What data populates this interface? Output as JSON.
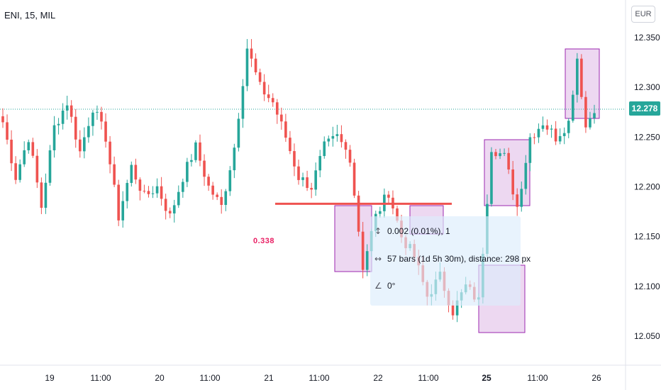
{
  "header": {
    "symbol_title": "ENI, 15, MIL",
    "currency": "EUR"
  },
  "colors": {
    "up": "#26a69a",
    "down": "#ef5350",
    "level_line": "#ef5350",
    "box_fill": "#e1bee7",
    "box_stroke": "#9c27b0",
    "last_price": "#26a69a"
  },
  "chart_data": {
    "type": "candlestick",
    "ylim": [
      12.035,
      12.37
    ],
    "yticks": [
      "12.350",
      "12.300",
      "12.250",
      "12.200",
      "12.150",
      "12.100",
      "12.050"
    ],
    "xticks": [
      {
        "label": "19",
        "bold": false
      },
      {
        "label": "11:00",
        "bold": false
      },
      {
        "label": "20",
        "bold": false
      },
      {
        "label": "11:00",
        "bold": false
      },
      {
        "label": "21",
        "bold": false
      },
      {
        "label": "11:00",
        "bold": false
      },
      {
        "label": "22",
        "bold": false
      },
      {
        "label": "11:00",
        "bold": false
      },
      {
        "label": "25",
        "bold": true
      },
      {
        "label": "11:00",
        "bold": false
      },
      {
        "label": "26",
        "bold": false
      }
    ],
    "last_price": "12.278",
    "horizontal_level": 12.183,
    "annotation_text": "0.338",
    "keypoints": [
      [
        0,
        12.265
      ],
      [
        3,
        12.21
      ],
      [
        6,
        12.25
      ],
      [
        9,
        12.18
      ],
      [
        12,
        12.26
      ],
      [
        15,
        12.285
      ],
      [
        18,
        12.235
      ],
      [
        21,
        12.28
      ],
      [
        24,
        12.25
      ],
      [
        27,
        12.17
      ],
      [
        30,
        12.22
      ],
      [
        33,
        12.19
      ],
      [
        36,
        12.2
      ],
      [
        39,
        12.17
      ],
      [
        42,
        12.21
      ],
      [
        45,
        12.24
      ],
      [
        48,
        12.2
      ],
      [
        51,
        12.18
      ],
      [
        54,
        12.24
      ],
      [
        57,
        12.34
      ],
      [
        60,
        12.3
      ],
      [
        63,
        12.285
      ],
      [
        66,
        12.25
      ],
      [
        69,
        12.21
      ],
      [
        72,
        12.2
      ],
      [
        75,
        12.24
      ],
      [
        78,
        12.25
      ],
      [
        81,
        12.23
      ],
      [
        84,
        12.12
      ],
      [
        87,
        12.17
      ],
      [
        90,
        12.195
      ],
      [
        93,
        12.15
      ],
      [
        96,
        12.13
      ],
      [
        99,
        12.09
      ],
      [
        102,
        12.11
      ],
      [
        105,
        12.075
      ],
      [
        108,
        12.1
      ],
      [
        111,
        12.085
      ],
      [
        114,
        12.24
      ],
      [
        117,
        12.23
      ],
      [
        120,
        12.18
      ],
      [
        123,
        12.25
      ],
      [
        126,
        12.265
      ],
      [
        129,
        12.25
      ],
      [
        132,
        12.265
      ],
      [
        134,
        12.33
      ],
      [
        136,
        12.26
      ],
      [
        138,
        12.28
      ]
    ],
    "boxes": [
      {
        "x0": 472,
        "y0": 290,
        "x1": 524,
        "y1": 383
      },
      {
        "x0": 578,
        "y0": 290,
        "x1": 625,
        "y1": 330
      },
      {
        "x0": 683,
        "y0": 197,
        "x1": 747,
        "y1": 290
      },
      {
        "x0": 797,
        "y0": 69,
        "x1": 845,
        "y1": 167
      },
      {
        "x0": 675,
        "y0": 374,
        "x1": 740,
        "y1": 469
      }
    ]
  },
  "tooltip": {
    "price_row": "0.002 (0.01%), 1",
    "bars_row": "57 bars (1d 5h 30m), distance: 298 px",
    "angle_row": "0°"
  }
}
